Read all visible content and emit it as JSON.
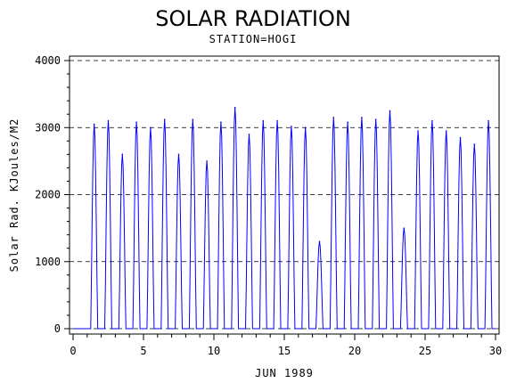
{
  "chart_data": {
    "type": "line",
    "title": "SOLAR RADIATION",
    "subtitle": "STATION=HOGI",
    "xlabel": "JUN 1989",
    "ylabel": "Solar Rad. KJoules/M2",
    "xlim": [
      0,
      30
    ],
    "ylim": [
      0,
      4000
    ],
    "x_ticks": [
      0,
      5,
      10,
      15,
      20,
      25,
      30
    ],
    "y_ticks": [
      0,
      1000,
      2000,
      3000,
      4000
    ],
    "y_tick_labels": [
      "0",
      "1000",
      "2000",
      "3000",
      "4000"
    ],
    "x_minor_ticks": [
      1,
      2,
      3,
      4,
      6,
      7,
      8,
      9,
      11,
      12,
      13,
      14,
      16,
      17,
      18,
      19,
      21,
      22,
      23,
      24,
      26,
      27,
      28,
      29
    ],
    "grid": "horizontal dashed",
    "series_color": "#0000ff",
    "daily_peaks": [
      {
        "day": 1,
        "peak": 3050
      },
      {
        "day": 2,
        "peak": 3100
      },
      {
        "day": 3,
        "peak": 2600
      },
      {
        "day": 4,
        "peak": 3080
      },
      {
        "day": 5,
        "peak": 3000
      },
      {
        "day": 6,
        "peak": 3120
      },
      {
        "day": 7,
        "peak": 2600
      },
      {
        "day": 8,
        "peak": 3120
      },
      {
        "day": 9,
        "peak": 2500
      },
      {
        "day": 10,
        "peak": 3080
      },
      {
        "day": 11,
        "peak": 3300
      },
      {
        "day": 12,
        "peak": 2900
      },
      {
        "day": 13,
        "peak": 3100
      },
      {
        "day": 14,
        "peak": 3100
      },
      {
        "day": 15,
        "peak": 3020
      },
      {
        "day": 16,
        "peak": 3000
      },
      {
        "day": 17,
        "peak": 1300
      },
      {
        "day": 18,
        "peak": 3150
      },
      {
        "day": 19,
        "peak": 3080
      },
      {
        "day": 20,
        "peak": 3150
      },
      {
        "day": 21,
        "peak": 3120
      },
      {
        "day": 22,
        "peak": 3250
      },
      {
        "day": 23,
        "peak": 1500
      },
      {
        "day": 24,
        "peak": 2950
      },
      {
        "day": 25,
        "peak": 3100
      },
      {
        "day": 26,
        "peak": 2950
      },
      {
        "day": 27,
        "peak": 2850
      },
      {
        "day": 28,
        "peak": 2750
      },
      {
        "day": 29,
        "peak": 3100
      }
    ]
  }
}
